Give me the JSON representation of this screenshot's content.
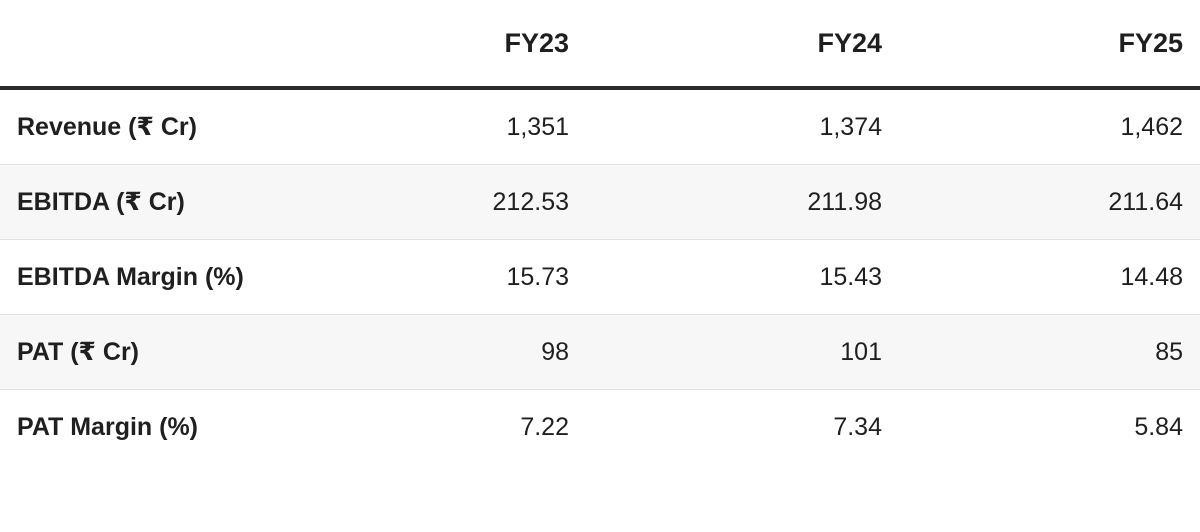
{
  "table": {
    "header": [
      "",
      "FY23",
      "FY24",
      "FY25"
    ],
    "rows": [
      [
        "Revenue (₹ Cr)",
        "1,351",
        "1,374",
        "1,462"
      ],
      [
        "EBITDA (₹ Cr)",
        "212.53",
        "211.98",
        "211.64"
      ],
      [
        "EBITDA Margin (%)",
        "15.73",
        "15.43",
        "14.48"
      ],
      [
        "PAT (₹ Cr)",
        "98",
        "101",
        "85"
      ],
      [
        "PAT Margin (%)",
        "7.22",
        "7.34",
        "5.84"
      ]
    ]
  }
}
